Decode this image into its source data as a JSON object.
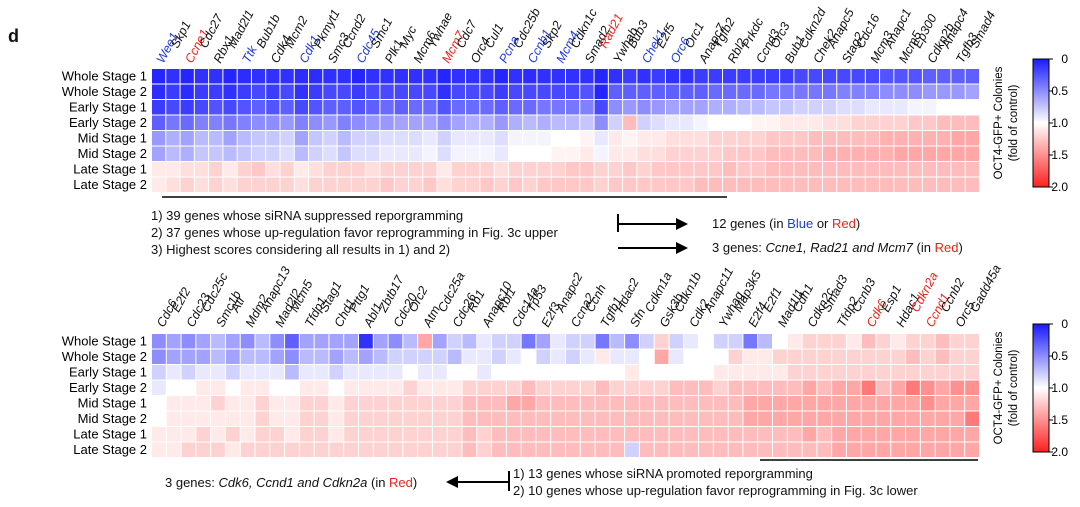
{
  "panel_label": "d",
  "colorbar": {
    "label_line1": "OCT4-GFP+ Colonies",
    "label_line2": "(fold of control)",
    "ticks": [
      "0",
      "0.5",
      "1.0",
      "1.5",
      "2.0"
    ]
  },
  "colors": {
    "low": "#1a1aff",
    "mid": "#ffffff",
    "high": "#ff2020",
    "blue_text": "#1f3bd6",
    "red_text": "#e8241c"
  },
  "chart_data": [
    {
      "type": "heatmap",
      "rows": [
        "Whole Stage 1",
        "Whole Stage 2",
        "Early Stage 1",
        "Early Stage 2",
        "Mid Stage 1",
        "Mid Stage 2",
        "Late Stage 1",
        "Late Stage 2"
      ],
      "columns": [
        "Wee1",
        "Skp1",
        "Ccne1",
        "Cdc27",
        "Rbx1",
        "Mad2l1",
        "Ttk",
        "Bub1b",
        "Cdk4",
        "Mcm2",
        "Cdk1",
        "Pkmyt1",
        "Smc3",
        "Ccnd2",
        "Cdc45",
        "Smc1",
        "Plk1",
        "Myc",
        "Mcm6",
        "Ywhae",
        "Mcm7",
        "Cdc7",
        "Orc4",
        "Cul1",
        "Pcna",
        "Cdc25b",
        "Ccnb1",
        "Skp2",
        "Mcm4",
        "Cdkn1c",
        "Smad2",
        "Rad21",
        "Ywhab",
        "Bub3",
        "Chek1",
        "E2f5",
        "Orc6",
        "Orc1",
        "Anapc7",
        "Tgfb2",
        "Rbl2",
        "Prkdc",
        "Ccnd3",
        "Orc3",
        "Bub1",
        "Cdkn2d",
        "Chek2",
        "Anapc5",
        "Stag2",
        "Cdc16",
        "Mcm3",
        "Anapc1",
        "Mcm5",
        "Ep300",
        "Cdkn2b",
        "Anapc4",
        "Tgfb3",
        "Smad4"
      ],
      "column_colors": {
        "Wee1": "blue",
        "Ccne1": "red",
        "Ttk": "blue",
        "Cdk1": "blue",
        "Cdc45": "blue",
        "Mcm7": "red",
        "Pcna": "blue",
        "Ccnb1": "blue",
        "Mcm4": "blue",
        "Rad21": "red",
        "Chek1": "blue",
        "Orc6": "blue"
      },
      "values": [
        [
          0.05,
          0.1,
          0.05,
          0.1,
          0.1,
          0.05,
          0.08,
          0.1,
          0.1,
          0.1,
          0.08,
          0.08,
          0.1,
          0.1,
          0.05,
          0.1,
          0.1,
          0.1,
          0.1,
          0.1,
          0.05,
          0.1,
          0.1,
          0.1,
          0.05,
          0.1,
          0.08,
          0.1,
          0.1,
          0.1,
          0.1,
          0.05,
          0.1,
          0.15,
          0.1,
          0.15,
          0.1,
          0.1,
          0.15,
          0.15,
          0.15,
          0.15,
          0.15,
          0.15,
          0.15,
          0.2,
          0.2,
          0.2,
          0.2,
          0.2,
          0.2,
          0.25,
          0.25,
          0.25,
          0.3,
          0.3,
          0.3,
          0.3
        ],
        [
          0.08,
          0.15,
          0.08,
          0.15,
          0.15,
          0.1,
          0.15,
          0.2,
          0.15,
          0.2,
          0.1,
          0.15,
          0.2,
          0.2,
          0.15,
          0.2,
          0.2,
          0.2,
          0.2,
          0.2,
          0.1,
          0.2,
          0.2,
          0.2,
          0.15,
          0.2,
          0.2,
          0.2,
          0.2,
          0.2,
          0.25,
          0.05,
          0.3,
          0.3,
          0.3,
          0.3,
          0.3,
          0.3,
          0.3,
          0.35,
          0.35,
          0.35,
          0.35,
          0.4,
          0.4,
          0.4,
          0.4,
          0.4,
          0.45,
          0.45,
          0.45,
          0.5,
          0.5,
          0.5,
          0.55,
          0.55,
          0.55,
          0.6
        ],
        [
          0.15,
          0.2,
          0.15,
          0.2,
          0.25,
          0.2,
          0.25,
          0.3,
          0.25,
          0.3,
          0.2,
          0.25,
          0.3,
          0.3,
          0.25,
          0.3,
          0.35,
          0.3,
          0.35,
          0.35,
          0.25,
          0.35,
          0.35,
          0.35,
          0.3,
          0.35,
          0.35,
          0.4,
          0.4,
          0.4,
          0.45,
          0.2,
          0.5,
          0.55,
          0.5,
          0.55,
          0.6,
          0.6,
          0.6,
          0.65,
          0.65,
          0.7,
          0.7,
          0.75,
          0.75,
          0.8,
          0.8,
          0.8,
          0.85,
          0.85,
          0.9,
          0.9,
          0.9,
          0.95,
          0.95,
          1.0,
          1.0,
          1.0
        ],
        [
          0.3,
          0.4,
          0.35,
          0.45,
          0.45,
          0.4,
          0.45,
          0.5,
          0.5,
          0.55,
          0.45,
          0.5,
          0.55,
          0.45,
          0.5,
          0.55,
          0.55,
          0.6,
          0.6,
          0.6,
          0.5,
          0.6,
          0.65,
          0.65,
          0.55,
          0.65,
          0.7,
          0.65,
          0.7,
          0.7,
          0.75,
          0.5,
          0.8,
          1.3,
          0.8,
          0.85,
          0.9,
          0.9,
          0.95,
          1.0,
          1.0,
          1.0,
          1.05,
          1.05,
          1.1,
          1.1,
          1.1,
          1.15,
          1.15,
          1.2,
          1.2,
          1.2,
          1.2,
          1.25,
          1.25,
          1.3,
          1.3,
          1.3
        ],
        [
          0.55,
          0.65,
          0.6,
          0.7,
          0.7,
          0.6,
          0.7,
          0.75,
          0.75,
          0.8,
          0.6,
          0.75,
          0.8,
          0.7,
          0.8,
          0.8,
          0.85,
          0.85,
          0.85,
          0.9,
          0.8,
          0.9,
          0.9,
          0.9,
          0.85,
          0.95,
          0.95,
          0.95,
          1.0,
          1.0,
          1.05,
          0.9,
          1.1,
          1.05,
          1.1,
          1.1,
          1.15,
          1.15,
          1.15,
          1.2,
          1.2,
          1.2,
          1.2,
          1.25,
          1.25,
          1.25,
          1.3,
          1.3,
          1.3,
          1.3,
          1.3,
          1.35,
          1.35,
          1.35,
          1.35,
          1.35,
          1.4,
          1.4
        ],
        [
          0.6,
          0.7,
          0.65,
          0.75,
          0.75,
          0.7,
          0.75,
          0.8,
          0.8,
          0.85,
          0.7,
          0.8,
          0.85,
          0.75,
          0.85,
          0.85,
          0.9,
          0.9,
          0.9,
          0.95,
          0.85,
          0.95,
          0.95,
          0.95,
          0.9,
          1.0,
          1.0,
          1.0,
          1.05,
          1.05,
          1.1,
          0.95,
          1.1,
          1.1,
          1.15,
          1.15,
          1.2,
          1.2,
          1.2,
          1.2,
          1.25,
          1.25,
          1.25,
          1.3,
          1.3,
          1.3,
          1.3,
          1.35,
          1.35,
          1.35,
          1.35,
          1.35,
          1.4,
          1.4,
          1.4,
          1.4,
          1.4,
          1.4
        ],
        [
          1.1,
          1.1,
          1.15,
          1.15,
          1.2,
          1.1,
          1.2,
          1.25,
          1.15,
          1.2,
          1.1,
          1.15,
          1.2,
          1.2,
          1.2,
          1.15,
          1.2,
          1.2,
          1.2,
          1.2,
          1.1,
          1.2,
          1.2,
          1.2,
          1.15,
          1.2,
          1.2,
          1.2,
          1.2,
          1.25,
          1.25,
          1.2,
          1.2,
          1.25,
          1.2,
          1.25,
          1.25,
          1.25,
          1.25,
          1.25,
          1.3,
          1.25,
          1.25,
          1.3,
          1.3,
          1.3,
          1.3,
          1.3,
          1.3,
          1.3,
          1.3,
          1.3,
          1.3,
          1.3,
          1.3,
          1.3,
          1.3,
          1.3
        ],
        [
          1.1,
          1.15,
          1.2,
          1.15,
          1.2,
          1.15,
          1.2,
          1.2,
          1.2,
          1.2,
          1.15,
          1.2,
          1.2,
          1.2,
          1.2,
          1.2,
          1.25,
          1.2,
          1.2,
          1.25,
          1.15,
          1.2,
          1.2,
          1.25,
          1.2,
          1.25,
          1.2,
          1.25,
          1.25,
          1.25,
          1.25,
          1.2,
          1.25,
          1.25,
          1.25,
          1.25,
          1.25,
          1.25,
          1.3,
          1.3,
          1.3,
          1.3,
          1.3,
          1.3,
          1.3,
          1.3,
          1.3,
          1.3,
          1.3,
          1.3,
          1.3,
          1.3,
          1.3,
          1.3,
          1.3,
          1.3,
          1.3,
          1.3
        ]
      ],
      "color_scale": {
        "min": 0,
        "max": 2.0,
        "center": 1.0
      }
    },
    {
      "type": "heatmap",
      "rows": [
        "Whole Stage 1",
        "Whole Stage 2",
        "Early Stage 1",
        "Early Stage 2",
        "Mid Stage 1",
        "Mid Stage 2",
        "Late Stage 1",
        "Late Stage 2"
      ],
      "columns": [
        "Cdc6",
        "E2f2",
        "Cdc23",
        "Cdc25c",
        "Smc1b",
        "Atr",
        "Mdm2",
        "Anapc13",
        "Mad2l2",
        "Mcm5",
        "Tfdp1",
        "Stag1",
        "Chd1",
        "Pttg1",
        "Abl1",
        "Zbtb17",
        "Cdc20",
        "Orc2",
        "Atm",
        "Cdc25a",
        "Cdc26",
        "Rb1",
        "Anapc10",
        "Rbl1",
        "Cdc14a",
        "Tp53",
        "E2f3",
        "Anapc2",
        "Ccna2",
        "Ccnh",
        "Tgfb1",
        "Hdac2",
        "Sfn",
        "Cdkn1a",
        "Gsk3b",
        "Cdkn1b",
        "Cdk2",
        "Anapc11",
        "Ywhag",
        "Map3k5",
        "E2f4",
        "E2f1",
        "Mad1l1",
        "Cdh1",
        "Cdkn2c",
        "Smad3",
        "Tfdp2",
        "Ccnb3",
        "Cdk6",
        "Esp1",
        "Hdac1",
        "Cdkn2a",
        "Ccnd1",
        "Ccnb2",
        "Orc5",
        "Gadd45a"
      ],
      "column_colors": {
        "Cdk6": "red",
        "Cdkn2a": "red",
        "Ccnd1": "red"
      },
      "values": [
        [
          0.5,
          0.6,
          0.5,
          0.6,
          0.7,
          0.6,
          0.5,
          0.7,
          0.5,
          0.3,
          0.6,
          0.6,
          0.6,
          0.6,
          0.1,
          0.6,
          0.5,
          0.7,
          1.4,
          0.6,
          0.8,
          0.7,
          0.9,
          0.8,
          0.8,
          0.4,
          0.6,
          0.9,
          0.8,
          0.8,
          0.4,
          0.7,
          0.5,
          0.8,
          1.2,
          0.8,
          0.9,
          1.0,
          0.8,
          0.8,
          0.4,
          0.7,
          1.0,
          1.1,
          1.2,
          1.2,
          1.2,
          1.1,
          1.3,
          1.2,
          1.1,
          1.2,
          1.2,
          1.3,
          1.2,
          1.2
        ],
        [
          0.5,
          0.6,
          0.6,
          0.6,
          0.7,
          0.6,
          0.7,
          0.7,
          0.6,
          0.5,
          0.7,
          0.7,
          0.6,
          0.7,
          0.6,
          0.7,
          0.8,
          0.8,
          0.8,
          0.8,
          0.7,
          0.9,
          0.9,
          0.8,
          0.9,
          1.0,
          0.8,
          0.9,
          0.8,
          0.9,
          1.1,
          0.9,
          0.9,
          1.0,
          1.4,
          0.9,
          1.0,
          1.0,
          1.0,
          1.2,
          1.1,
          1.1,
          1.2,
          1.2,
          1.2,
          1.2,
          1.2,
          1.2,
          1.2,
          1.2,
          1.2,
          1.3,
          1.2,
          1.3,
          1.2,
          1.2
        ],
        [
          0.8,
          0.9,
          0.8,
          0.9,
          0.9,
          0.8,
          0.9,
          0.9,
          0.9,
          0.7,
          0.9,
          0.9,
          0.8,
          0.9,
          0.9,
          0.9,
          0.9,
          1.0,
          0.9,
          0.9,
          1.0,
          1.0,
          0.9,
          1.0,
          1.0,
          1.0,
          1.0,
          1.0,
          1.0,
          1.0,
          1.0,
          1.0,
          1.1,
          1.0,
          1.0,
          1.0,
          1.0,
          1.0,
          1.1,
          1.1,
          1.1,
          1.1,
          1.1,
          1.2,
          1.2,
          1.2,
          1.2,
          1.2,
          1.2,
          1.2,
          1.2,
          1.2,
          1.2,
          1.2,
          1.2,
          1.2
        ],
        [
          0.9,
          1.0,
          1.0,
          1.1,
          1.1,
          1.0,
          1.1,
          1.1,
          1.0,
          1.0,
          1.1,
          1.1,
          1.0,
          1.1,
          1.1,
          1.1,
          1.1,
          1.2,
          1.1,
          1.1,
          1.1,
          1.2,
          1.2,
          1.2,
          1.2,
          1.3,
          1.2,
          1.2,
          1.2,
          1.2,
          1.3,
          1.2,
          1.2,
          1.2,
          1.2,
          1.3,
          1.3,
          1.3,
          1.2,
          1.3,
          1.3,
          1.3,
          1.3,
          1.3,
          1.4,
          1.3,
          1.4,
          1.4,
          1.6,
          1.3,
          1.4,
          1.6,
          1.5,
          1.4,
          1.5,
          1.5
        ],
        [
          1.0,
          1.1,
          1.1,
          1.1,
          1.2,
          1.1,
          1.1,
          1.2,
          1.1,
          1.1,
          1.2,
          1.2,
          1.1,
          1.2,
          1.2,
          1.2,
          1.2,
          1.2,
          1.2,
          1.2,
          1.2,
          1.3,
          1.3,
          1.3,
          1.4,
          1.4,
          1.3,
          1.3,
          1.3,
          1.3,
          1.3,
          1.3,
          1.3,
          1.3,
          1.3,
          1.3,
          1.3,
          1.3,
          1.3,
          1.3,
          1.4,
          1.4,
          1.4,
          1.4,
          1.4,
          1.4,
          1.4,
          1.4,
          1.4,
          1.4,
          1.4,
          1.4,
          1.5,
          1.4,
          1.4,
          1.4
        ],
        [
          1.0,
          1.1,
          1.1,
          1.1,
          1.1,
          1.1,
          1.1,
          1.2,
          1.1,
          1.1,
          1.2,
          1.2,
          1.1,
          1.2,
          1.2,
          1.2,
          1.2,
          1.2,
          1.2,
          1.2,
          1.2,
          1.3,
          1.3,
          1.3,
          1.3,
          1.3,
          1.3,
          1.3,
          1.3,
          1.3,
          1.3,
          1.3,
          1.3,
          1.3,
          1.3,
          1.3,
          1.3,
          1.3,
          1.3,
          1.3,
          1.4,
          1.4,
          1.4,
          1.4,
          1.4,
          1.4,
          1.4,
          1.4,
          1.4,
          1.4,
          1.4,
          1.4,
          1.4,
          1.4,
          1.4,
          1.6
        ],
        [
          1.1,
          1.1,
          1.1,
          1.2,
          1.1,
          1.2,
          1.1,
          1.2,
          1.2,
          1.1,
          1.2,
          1.2,
          1.1,
          1.2,
          1.2,
          1.2,
          1.2,
          1.2,
          1.2,
          1.2,
          1.2,
          1.3,
          1.2,
          1.3,
          1.3,
          1.3,
          1.3,
          1.3,
          1.3,
          1.3,
          1.3,
          1.3,
          1.3,
          1.3,
          1.3,
          1.3,
          1.3,
          1.3,
          1.3,
          1.3,
          1.3,
          1.3,
          1.3,
          1.3,
          1.4,
          1.3,
          1.4,
          1.4,
          1.4,
          1.4,
          1.4,
          1.4,
          1.4,
          1.4,
          1.4,
          1.4
        ],
        [
          1.1,
          1.1,
          1.2,
          1.2,
          1.2,
          1.1,
          1.2,
          1.2,
          1.2,
          1.2,
          1.2,
          1.2,
          1.2,
          1.2,
          1.2,
          1.2,
          1.2,
          1.2,
          1.2,
          1.2,
          1.2,
          1.3,
          1.2,
          1.3,
          1.3,
          1.3,
          1.3,
          1.3,
          1.3,
          1.3,
          1.3,
          1.3,
          0.8,
          1.3,
          1.3,
          1.3,
          1.3,
          1.3,
          1.3,
          1.3,
          1.3,
          1.3,
          1.3,
          1.3,
          1.3,
          1.3,
          1.4,
          1.4,
          1.4,
          1.4,
          1.4,
          1.4,
          1.4,
          1.4,
          1.4,
          1.4
        ]
      ],
      "color_scale": {
        "min": 0,
        "max": 2.0,
        "center": 1.0
      }
    }
  ],
  "annotations_top": {
    "line1": "1) 39 genes whose siRNA suppressed reporgramming",
    "line2": "2) 37 genes whose up-regulation favor reprogramming in Fig. 3c upper",
    "line3": "3) Highest scores considering all results in 1) and 2)",
    "result1_pre": "12 genes (in ",
    "result1_blue": "Blue",
    "result1_mid": " or ",
    "result1_red": "Red",
    "result1_post": ")",
    "result2_pre": "3 genes: ",
    "result2_italic": "Ccne1, Rad21 and Mcm7",
    "result2_mid": " (in ",
    "result2_red": "Red",
    "result2_post": ")"
  },
  "annotations_bottom": {
    "line1": "1) 13 genes whose siRNA promoted reporgramming",
    "line2": "2) 10 genes whose up-regulation favor reprogramming in Fig. 3c lower",
    "result_pre": "3 genes: ",
    "result_italic": "Cdk6, Ccnd1 and Cdkn2a",
    "result_mid": " (in ",
    "result_red": "Red",
    "result_post": ")"
  }
}
